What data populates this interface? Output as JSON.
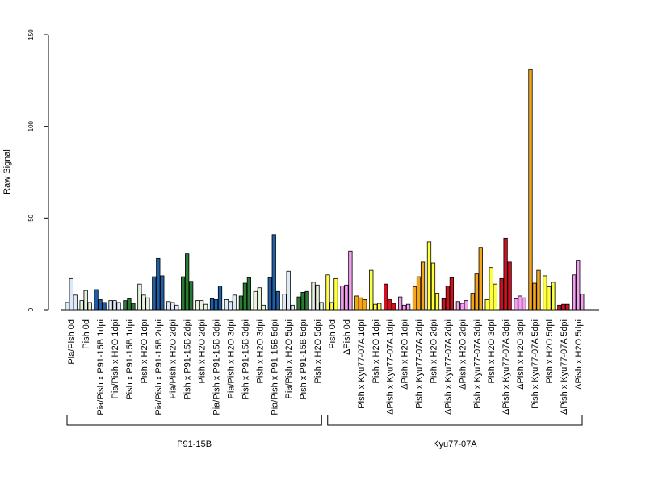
{
  "chart_data": {
    "type": "bar",
    "title": "",
    "xlabel": "",
    "ylabel": "Raw Signal",
    "ylim": [
      0,
      150
    ],
    "yticks": [
      0,
      50,
      100,
      150
    ],
    "grid": false,
    "legend": "none",
    "bars_per_category": 3,
    "categories": [
      {
        "label": "Pia/Pish 0d",
        "colors": [
          "#dde9f5",
          "#dde9f5",
          "#dde9f5"
        ],
        "values": [
          4,
          17,
          8
        ]
      },
      {
        "label": "Pish 0d",
        "colors": [
          "#e6f2dd",
          "#e6f2dd",
          "#e6f2dd"
        ],
        "values": [
          5,
          10.5,
          4
        ]
      },
      {
        "label": "Pia/Pish x P91-15B 1dpi",
        "colors": [
          "#1f5fa8",
          "#1f5fa8",
          "#1f5fa8"
        ],
        "values": [
          11,
          5.5,
          4
        ]
      },
      {
        "label": "Pia/Pish x H2O 1dpi",
        "colors": [
          "#dde9f5",
          "#dde9f5",
          "#dde9f5"
        ],
        "values": [
          5,
          5,
          4
        ]
      },
      {
        "label": "Pish x P91-15B 1dpi",
        "colors": [
          "#2a7a33",
          "#2a7a33",
          "#2a7a33"
        ],
        "values": [
          5,
          6,
          3.5
        ]
      },
      {
        "label": "Pish x H2O 1dpi",
        "colors": [
          "#e6f2dd",
          "#e6f2dd",
          "#e6f2dd"
        ],
        "values": [
          14,
          8,
          6.5
        ]
      },
      {
        "label": "Pia/Pish x P91-15B 2dpi",
        "colors": [
          "#1f5fa8",
          "#1f5fa8",
          "#1f5fa8"
        ],
        "values": [
          18,
          28,
          18.5
        ]
      },
      {
        "label": "Pia/Pish x H2O 2dpi",
        "colors": [
          "#dde9f5",
          "#dde9f5",
          "#dde9f5"
        ],
        "values": [
          4.5,
          4,
          2.5
        ]
      },
      {
        "label": "Pish x P91-15B 2dpi",
        "colors": [
          "#2a7a33",
          "#2a7a33",
          "#2a7a33"
        ],
        "values": [
          18,
          30.5,
          15.5
        ]
      },
      {
        "label": "Pish x H2O 2dpi",
        "colors": [
          "#e6f2dd",
          "#e6f2dd",
          "#e6f2dd"
        ],
        "values": [
          5,
          5,
          3
        ]
      },
      {
        "label": "Pia/Pish x P91-15B 3dpi",
        "colors": [
          "#1f5fa8",
          "#1f5fa8",
          "#1f5fa8"
        ],
        "values": [
          6,
          5.5,
          13
        ]
      },
      {
        "label": "Pia/Pish x H2O 3dpi",
        "colors": [
          "#dde9f5",
          "#dde9f5",
          "#dde9f5"
        ],
        "values": [
          5.5,
          4.5,
          8
        ]
      },
      {
        "label": "Pish x P91-15B 3dpi",
        "colors": [
          "#2a7a33",
          "#2a7a33",
          "#2a7a33"
        ],
        "values": [
          7.5,
          14.5,
          17.5
        ]
      },
      {
        "label": "Pish x H2O 3dpi",
        "colors": [
          "#e6f2dd",
          "#e6f2dd",
          "#e6f2dd"
        ],
        "values": [
          10,
          12,
          2.5
        ]
      },
      {
        "label": "Pia/Pish x P91-15B 5dpi",
        "colors": [
          "#1f5fa8",
          "#1f5fa8",
          "#1f5fa8"
        ],
        "values": [
          17.5,
          41,
          10
        ]
      },
      {
        "label": "Pia/Pish x H2O 5dpi",
        "colors": [
          "#dde9f5",
          "#dde9f5",
          "#dde9f5"
        ],
        "values": [
          8.5,
          21,
          2.5
        ]
      },
      {
        "label": "Pish x P91-15B 5dpi",
        "colors": [
          "#2a7a33",
          "#2a7a33",
          "#2a7a33"
        ],
        "values": [
          7,
          9.5,
          10
        ]
      },
      {
        "label": "Pish x H2O 5dpi",
        "colors": [
          "#e6f2dd",
          "#e6f2dd",
          "#e6f2dd"
        ],
        "values": [
          15,
          13.5,
          4
        ]
      },
      {
        "label": "Pish 0d",
        "colors": [
          "#ffff40",
          "#ffff40",
          "#ffff40"
        ],
        "values": [
          19,
          4,
          17
        ]
      },
      {
        "label": "ΔPish 0d",
        "colors": [
          "#f4a0f0",
          "#f4a0f0",
          "#f4a0f0"
        ],
        "values": [
          13,
          13.5,
          32
        ]
      },
      {
        "label": "Pish x Kyu77-07A 1dpi",
        "colors": [
          "#f5a51a",
          "#f5a51a",
          "#f5a51a"
        ],
        "values": [
          7.5,
          6.5,
          5.5
        ]
      },
      {
        "label": "Pish x H2O 1dpi",
        "colors": [
          "#ffff40",
          "#ffff40",
          "#ffff40"
        ],
        "values": [
          21.5,
          3,
          3.5
        ]
      },
      {
        "label": "ΔPish x Kyu77-07A 1dpi",
        "colors": [
          "#d2101f",
          "#d2101f",
          "#d2101f"
        ],
        "values": [
          14,
          5.5,
          3.5
        ]
      },
      {
        "label": "ΔPish x H2O 1dpi",
        "colors": [
          "#f4a0f0",
          "#f4a0f0",
          "#f4a0f0"
        ],
        "values": [
          7,
          2.5,
          3
        ]
      },
      {
        "label": "Pish x Kyu77-07A 2dpi",
        "colors": [
          "#f5a51a",
          "#f5a51a",
          "#f5a51a"
        ],
        "values": [
          12.5,
          18,
          26
        ]
      },
      {
        "label": "Pish x H2O 2dpi",
        "colors": [
          "#ffff40",
          "#ffff40",
          "#ffff40"
        ],
        "values": [
          37,
          25.5,
          9
        ]
      },
      {
        "label": "ΔPish x Kyu77-07A 2dpi",
        "colors": [
          "#d2101f",
          "#d2101f",
          "#d2101f"
        ],
        "values": [
          6,
          13,
          17.5
        ]
      },
      {
        "label": "ΔPish x H2O 2dpi",
        "colors": [
          "#f4a0f0",
          "#f4a0f0",
          "#f4a0f0"
        ],
        "values": [
          4.5,
          3.5,
          5
        ]
      },
      {
        "label": "Pish x Kyu77-07A 3dpi",
        "colors": [
          "#f5a51a",
          "#f5a51a",
          "#f5a51a"
        ],
        "values": [
          9,
          19.5,
          34
        ]
      },
      {
        "label": "Pish x H2O 3dpi",
        "colors": [
          "#ffff40",
          "#ffff40",
          "#ffff40"
        ],
        "values": [
          5.5,
          23,
          14
        ]
      },
      {
        "label": "ΔPish x Kyu77-07A 3dpi",
        "colors": [
          "#d2101f",
          "#d2101f",
          "#d2101f"
        ],
        "values": [
          17,
          39,
          26
        ]
      },
      {
        "label": "ΔPish x H2O 3dpi",
        "colors": [
          "#f4a0f0",
          "#f4a0f0",
          "#f4a0f0"
        ],
        "values": [
          6,
          7.5,
          6.5
        ]
      },
      {
        "label": "Pish x Kyu77-07A 5dpi",
        "colors": [
          "#f5a51a",
          "#f5a51a",
          "#f5a51a"
        ],
        "values": [
          131,
          14.5,
          21.5
        ]
      },
      {
        "label": "Pish x H2O 5dpi",
        "colors": [
          "#ffff40",
          "#ffff40",
          "#ffff40"
        ],
        "values": [
          18.5,
          12.5,
          15
        ]
      },
      {
        "label": "ΔPish x Kyu77-07A 5dpi",
        "colors": [
          "#d2101f",
          "#d2101f",
          "#d2101f"
        ],
        "values": [
          2.5,
          3,
          3
        ]
      },
      {
        "label": "ΔPish x H2O 5dpi",
        "colors": [
          "#f4a0f0",
          "#f4a0f0",
          "#f4a0f0"
        ],
        "values": [
          19,
          27,
          8.5
        ]
      }
    ],
    "groups": [
      {
        "label": "P91-15B",
        "from": 0,
        "to": 17
      },
      {
        "label": "Kyu77-07A",
        "from": 18,
        "to": 35
      }
    ]
  }
}
